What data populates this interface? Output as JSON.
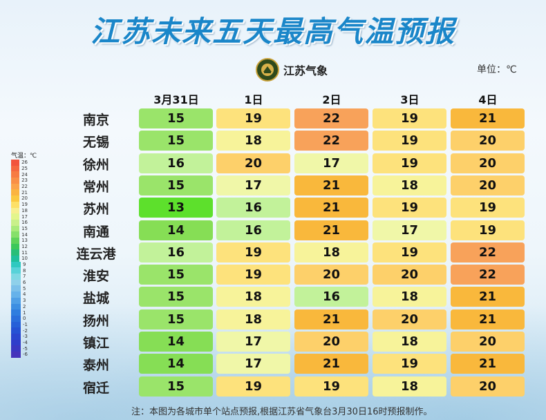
{
  "title": "江苏未来五天最高气温预报",
  "logo": {
    "name": "江苏气象",
    "badge_icon": "meteorological-seal-icon"
  },
  "unit": "单位：℃",
  "legend": {
    "title": "气温：℃",
    "labels": [
      "26",
      "25",
      "24",
      "23",
      "22",
      "21",
      "20",
      "19",
      "18",
      "17",
      "16",
      "15",
      "14",
      "13",
      "12",
      "11",
      "10",
      "9",
      "8",
      "7",
      "6",
      "5",
      "4",
      "3",
      "2",
      "1",
      "0",
      "-1",
      "-2",
      "-3",
      "-4",
      "-5",
      "-6"
    ],
    "colors": [
      "#f2533c",
      "#f5673f",
      "#f77b43",
      "#f98f47",
      "#fba34b",
      "#fbb440",
      "#fbc940",
      "#fde067",
      "#f7ef90",
      "#e3f58c",
      "#c9f08a",
      "#a9ea7a",
      "#86e06a",
      "#5fd25a",
      "#3cc85a",
      "#28be78",
      "#1fbf9c",
      "#2fc9c0",
      "#57d2d8",
      "#7fd8e3",
      "#8fd0ea",
      "#7cc0ea",
      "#66b2ea",
      "#4f9fe6",
      "#3c8ee2",
      "#2f7ddf",
      "#2a6edc",
      "#2660d8",
      "#2552d4",
      "#2946cf",
      "#2f3dca",
      "#3a37c2",
      "#4634bb"
    ]
  },
  "columns": [
    "3月31日",
    "1日",
    "2日",
    "3日",
    "4日"
  ],
  "rows": [
    {
      "city": "南京",
      "values": [
        15,
        19,
        22,
        19,
        21
      ]
    },
    {
      "city": "无锡",
      "values": [
        15,
        18,
        22,
        19,
        20
      ]
    },
    {
      "city": "徐州",
      "values": [
        16,
        20,
        17,
        19,
        20
      ]
    },
    {
      "city": "常州",
      "values": [
        15,
        17,
        21,
        18,
        20
      ]
    },
    {
      "city": "苏州",
      "values": [
        13,
        16,
        21,
        19,
        19
      ]
    },
    {
      "city": "南通",
      "values": [
        14,
        16,
        21,
        17,
        19
      ]
    },
    {
      "city": "连云港",
      "values": [
        16,
        19,
        18,
        19,
        22
      ]
    },
    {
      "city": "淮安",
      "values": [
        15,
        19,
        20,
        20,
        22
      ]
    },
    {
      "city": "盐城",
      "values": [
        15,
        18,
        16,
        18,
        21
      ]
    },
    {
      "city": "扬州",
      "values": [
        15,
        18,
        21,
        20,
        21
      ]
    },
    {
      "city": "镇江",
      "values": [
        14,
        17,
        20,
        18,
        20
      ]
    },
    {
      "city": "泰州",
      "values": [
        14,
        17,
        21,
        19,
        21
      ]
    },
    {
      "city": "宿迁",
      "values": [
        15,
        19,
        19,
        18,
        20
      ]
    }
  ],
  "temp_colors": {
    "13": "#5de02c",
    "14": "#86de55",
    "15": "#9ae46a",
    "16": "#c2f29a",
    "17": "#f0f7a8",
    "18": "#f7f39a",
    "19": "#fde27c",
    "20": "#fdd06a",
    "21": "#f9b83c",
    "22": "#f8a25a"
  },
  "note": "注：本图为各城市单个站点预报,根据江苏省气象台3月30日16时预报制作。"
}
